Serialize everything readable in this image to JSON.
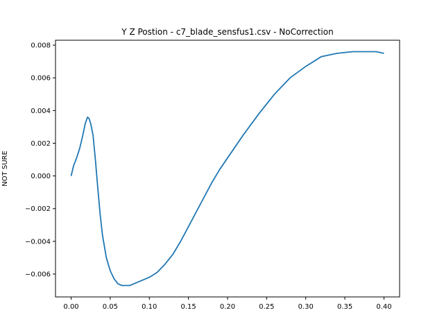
{
  "chart_data": {
    "type": "line",
    "title": "Y Z Postion - c7_blade_sensfus1.csv - NoCorrection",
    "xlabel": "",
    "ylabel": "NOT SURE",
    "xlim": [
      -0.02,
      0.42
    ],
    "ylim": [
      -0.0074,
      0.0083
    ],
    "xticks": [
      0.0,
      0.05,
      0.1,
      0.15,
      0.2,
      0.25,
      0.3,
      0.35,
      0.4
    ],
    "xtick_labels": [
      "0.00",
      "0.05",
      "0.10",
      "0.15",
      "0.20",
      "0.25",
      "0.30",
      "0.35",
      "0.40"
    ],
    "yticks": [
      -0.006,
      -0.004,
      -0.002,
      0.0,
      0.002,
      0.004,
      0.006,
      0.008
    ],
    "ytick_labels": [
      "−0.006",
      "−0.004",
      "−0.002",
      "0.000",
      "0.002",
      "0.004",
      "0.006",
      "0.008"
    ],
    "grid": false,
    "line_color": "#1f77b4",
    "series": [
      {
        "x": [
          0.0,
          0.003,
          0.007,
          0.011,
          0.015,
          0.018,
          0.021,
          0.023,
          0.025,
          0.028,
          0.031,
          0.034,
          0.037,
          0.04,
          0.045,
          0.05,
          0.055,
          0.06,
          0.065,
          0.07,
          0.075,
          0.08,
          0.09,
          0.1,
          0.11,
          0.12,
          0.13,
          0.14,
          0.15,
          0.16,
          0.17,
          0.18,
          0.19,
          0.2,
          0.22,
          0.24,
          0.26,
          0.28,
          0.3,
          0.32,
          0.34,
          0.36,
          0.38,
          0.39,
          0.4
        ],
        "y": [
          0.0,
          0.0006,
          0.0011,
          0.0017,
          0.0025,
          0.0032,
          0.0036,
          0.0035,
          0.0032,
          0.0025,
          0.001,
          -0.0007,
          -0.0023,
          -0.0036,
          -0.005,
          -0.0058,
          -0.0063,
          -0.0066,
          -0.0067,
          -0.0067,
          -0.0067,
          -0.0066,
          -0.0064,
          -0.0062,
          -0.0059,
          -0.0054,
          -0.0048,
          -0.004,
          -0.0031,
          -0.0022,
          -0.0013,
          -0.0004,
          0.0004,
          0.0011,
          0.0025,
          0.0038,
          0.005,
          0.006,
          0.0067,
          0.0073,
          0.0075,
          0.0076,
          0.0076,
          0.0076,
          0.0075
        ]
      }
    ]
  }
}
